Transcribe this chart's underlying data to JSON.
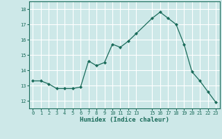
{
  "x": [
    0,
    1,
    2,
    3,
    4,
    5,
    6,
    7,
    8,
    9,
    10,
    11,
    12,
    13,
    15,
    16,
    17,
    18,
    19,
    20,
    21,
    22,
    23
  ],
  "y": [
    13.3,
    13.3,
    13.1,
    12.8,
    12.8,
    12.8,
    12.9,
    14.6,
    14.3,
    14.5,
    15.7,
    15.5,
    15.9,
    16.4,
    17.4,
    17.8,
    17.4,
    17.0,
    15.7,
    13.9,
    13.3,
    12.6,
    11.9
  ],
  "xlabel": "Humidex (Indice chaleur)",
  "xticks": [
    0,
    1,
    2,
    3,
    4,
    5,
    6,
    7,
    8,
    9,
    10,
    11,
    12,
    13,
    15,
    16,
    17,
    18,
    19,
    20,
    21,
    22,
    23
  ],
  "yticks": [
    12,
    13,
    14,
    15,
    16,
    17,
    18
  ],
  "ylim": [
    11.5,
    18.5
  ],
  "xlim": [
    -0.5,
    23.5
  ],
  "line_color": "#1a6b5a",
  "marker_color": "#1a6b5a",
  "bg_color": "#cde8e8",
  "grid_color": "#b8d8d8",
  "tick_label_color": "#1a6b5a",
  "xlabel_color": "#1a6b5a"
}
